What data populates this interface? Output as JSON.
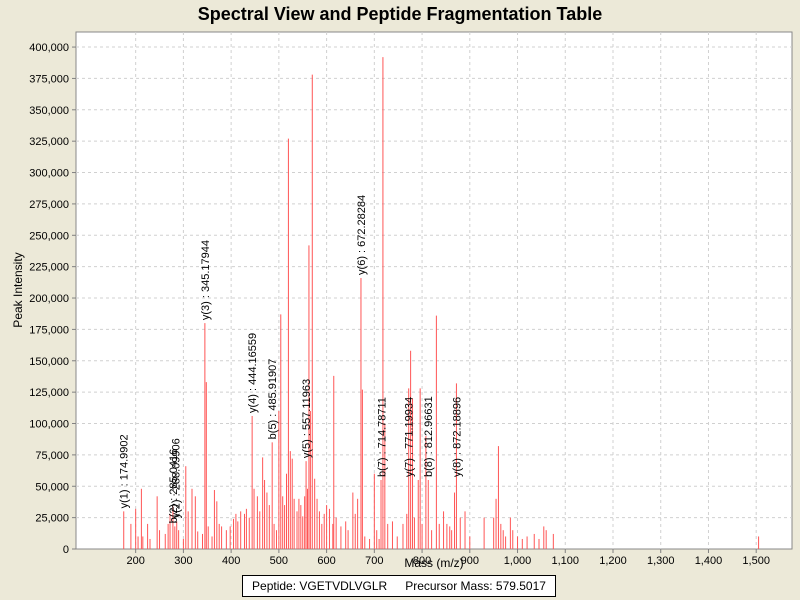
{
  "chart_data": {
    "type": "bar",
    "title": "Spectral View and Peptide Fragmentation Table",
    "xlabel": "Mass (m/z)",
    "ylabel": "Peak Intensity",
    "xlim": [
      75,
      1575
    ],
    "ylim": [
      0,
      412000
    ],
    "xticks": [
      200,
      300,
      400,
      500,
      600,
      700,
      800,
      900,
      1000,
      1100,
      1200,
      1300,
      1400,
      1500
    ],
    "xtick_labels": [
      "200",
      "300",
      "400",
      "500",
      "600",
      "700",
      "800",
      "900",
      "1,000",
      "1,100",
      "1,200",
      "1,300",
      "1,400",
      "1,500"
    ],
    "yticks": [
      0,
      25000,
      50000,
      75000,
      100000,
      125000,
      150000,
      175000,
      200000,
      225000,
      250000,
      275000,
      300000,
      325000,
      350000,
      375000,
      400000
    ],
    "ytick_labels": [
      "0",
      "25,000",
      "50,000",
      "75,000",
      "100,000",
      "125,000",
      "150,000",
      "175,000",
      "200,000",
      "225,000",
      "250,000",
      "275,000",
      "300,000",
      "325,000",
      "350,000",
      "375,000",
      "400,000"
    ],
    "grid": true,
    "bar_color": "#ff5555",
    "peaks": [
      [
        175,
        30000
      ],
      [
        190,
        20000
      ],
      [
        200,
        32000
      ],
      [
        205,
        10000
      ],
      [
        212,
        48000
      ],
      [
        215,
        10000
      ],
      [
        225,
        20000
      ],
      [
        230,
        8000
      ],
      [
        245,
        42000
      ],
      [
        250,
        15000
      ],
      [
        262,
        12000
      ],
      [
        268,
        20000
      ],
      [
        272,
        28000
      ],
      [
        278,
        34000
      ],
      [
        282,
        18000
      ],
      [
        286,
        22000
      ],
      [
        290,
        15000
      ],
      [
        300,
        8000
      ],
      [
        305,
        66000
      ],
      [
        310,
        30000
      ],
      [
        318,
        48000
      ],
      [
        325,
        42000
      ],
      [
        330,
        14000
      ],
      [
        340,
        12000
      ],
      [
        345,
        180000
      ],
      [
        348,
        133000
      ],
      [
        352,
        18000
      ],
      [
        360,
        10000
      ],
      [
        365,
        47000
      ],
      [
        370,
        38000
      ],
      [
        375,
        20000
      ],
      [
        380,
        18000
      ],
      [
        390,
        15000
      ],
      [
        398,
        18000
      ],
      [
        405,
        24000
      ],
      [
        410,
        28000
      ],
      [
        414,
        22000
      ],
      [
        420,
        30000
      ],
      [
        428,
        28000
      ],
      [
        432,
        32000
      ],
      [
        438,
        25000
      ],
      [
        444,
        106000
      ],
      [
        448,
        48000
      ],
      [
        455,
        42000
      ],
      [
        460,
        30000
      ],
      [
        466,
        73000
      ],
      [
        470,
        55000
      ],
      [
        475,
        45000
      ],
      [
        480,
        35000
      ],
      [
        486,
        85000
      ],
      [
        490,
        20000
      ],
      [
        495,
        15000
      ],
      [
        500,
        110000
      ],
      [
        504,
        187000
      ],
      [
        508,
        42000
      ],
      [
        512,
        35000
      ],
      [
        516,
        60000
      ],
      [
        520,
        327000
      ],
      [
        524,
        78000
      ],
      [
        528,
        72000
      ],
      [
        532,
        40000
      ],
      [
        538,
        30000
      ],
      [
        542,
        40000
      ],
      [
        546,
        35000
      ],
      [
        550,
        26000
      ],
      [
        554,
        42000
      ],
      [
        557,
        70000
      ],
      [
        560,
        48000
      ],
      [
        563,
        242000
      ],
      [
        566,
        110000
      ],
      [
        570,
        378000
      ],
      [
        575,
        56000
      ],
      [
        580,
        40000
      ],
      [
        585,
        30000
      ],
      [
        590,
        20000
      ],
      [
        595,
        28000
      ],
      [
        600,
        35000
      ],
      [
        606,
        32000
      ],
      [
        613,
        20000
      ],
      [
        615,
        138000
      ],
      [
        620,
        25000
      ],
      [
        630,
        18000
      ],
      [
        640,
        22000
      ],
      [
        645,
        15000
      ],
      [
        655,
        45000
      ],
      [
        660,
        28000
      ],
      [
        665,
        40000
      ],
      [
        672,
        216000
      ],
      [
        675,
        127000
      ],
      [
        680,
        10000
      ],
      [
        690,
        8000
      ],
      [
        700,
        60000
      ],
      [
        705,
        15000
      ],
      [
        710,
        8000
      ],
      [
        714,
        55000
      ],
      [
        718,
        392000
      ],
      [
        722,
        100000
      ],
      [
        728,
        20000
      ],
      [
        738,
        22000
      ],
      [
        748,
        10000
      ],
      [
        760,
        20000
      ],
      [
        768,
        28000
      ],
      [
        772,
        128000
      ],
      [
        776,
        158000
      ],
      [
        780,
        120000
      ],
      [
        784,
        25000
      ],
      [
        792,
        55000
      ],
      [
        796,
        128000
      ],
      [
        800,
        20000
      ],
      [
        808,
        90000
      ],
      [
        813,
        55000
      ],
      [
        820,
        15000
      ],
      [
        830,
        186000
      ],
      [
        836,
        20000
      ],
      [
        845,
        30000
      ],
      [
        852,
        20000
      ],
      [
        858,
        18000
      ],
      [
        862,
        15000
      ],
      [
        868,
        45000
      ],
      [
        872,
        132000
      ],
      [
        880,
        25000
      ],
      [
        890,
        30000
      ],
      [
        900,
        10000
      ],
      [
        930,
        25000
      ],
      [
        950,
        25000
      ],
      [
        955,
        40000
      ],
      [
        960,
        82000
      ],
      [
        965,
        20000
      ],
      [
        970,
        15000
      ],
      [
        975,
        10000
      ],
      [
        985,
        25000
      ],
      [
        990,
        15000
      ],
      [
        1000,
        10000
      ],
      [
        1010,
        8000
      ],
      [
        1020,
        10000
      ],
      [
        1035,
        12000
      ],
      [
        1045,
        8000
      ],
      [
        1055,
        18000
      ],
      [
        1060,
        15000
      ],
      [
        1075,
        12000
      ],
      [
        1505,
        10000
      ]
    ],
    "annotations": [
      {
        "x": 174.99,
        "y": 30000,
        "label": "y(1) : 174.9902"
      },
      {
        "x": 278.5,
        "y": 18000,
        "label": "b(2) : 285.0416"
      },
      {
        "x": 283.5,
        "y": 22000,
        "label": "y(2) : 288.09906"
      },
      {
        "x": 345.18,
        "y": 180000,
        "label": "y(3) : 345.17944"
      },
      {
        "x": 444.17,
        "y": 106000,
        "label": "y(4) : 444.16559"
      },
      {
        "x": 485.92,
        "y": 85000,
        "label": "b(5) : 485.91907"
      },
      {
        "x": 557.12,
        "y": 70000,
        "label": "y(5) : 557.11963"
      },
      {
        "x": 672.28,
        "y": 216000,
        "label": "y(6) : 672.28284"
      },
      {
        "x": 714.79,
        "y": 55000,
        "label": "b(7) : 714.78711"
      },
      {
        "x": 771.2,
        "y": 55000,
        "label": "y(7) : 771.19934"
      },
      {
        "x": 812.97,
        "y": 55000,
        "label": "b(8) : 812.96631"
      },
      {
        "x": 872.19,
        "y": 55000,
        "label": "y(8) : 872.18896"
      }
    ]
  },
  "footer": {
    "peptide_label": "Peptide: VGETVDLVGLR",
    "precursor_label": "Precursor Mass: 579.5017"
  }
}
